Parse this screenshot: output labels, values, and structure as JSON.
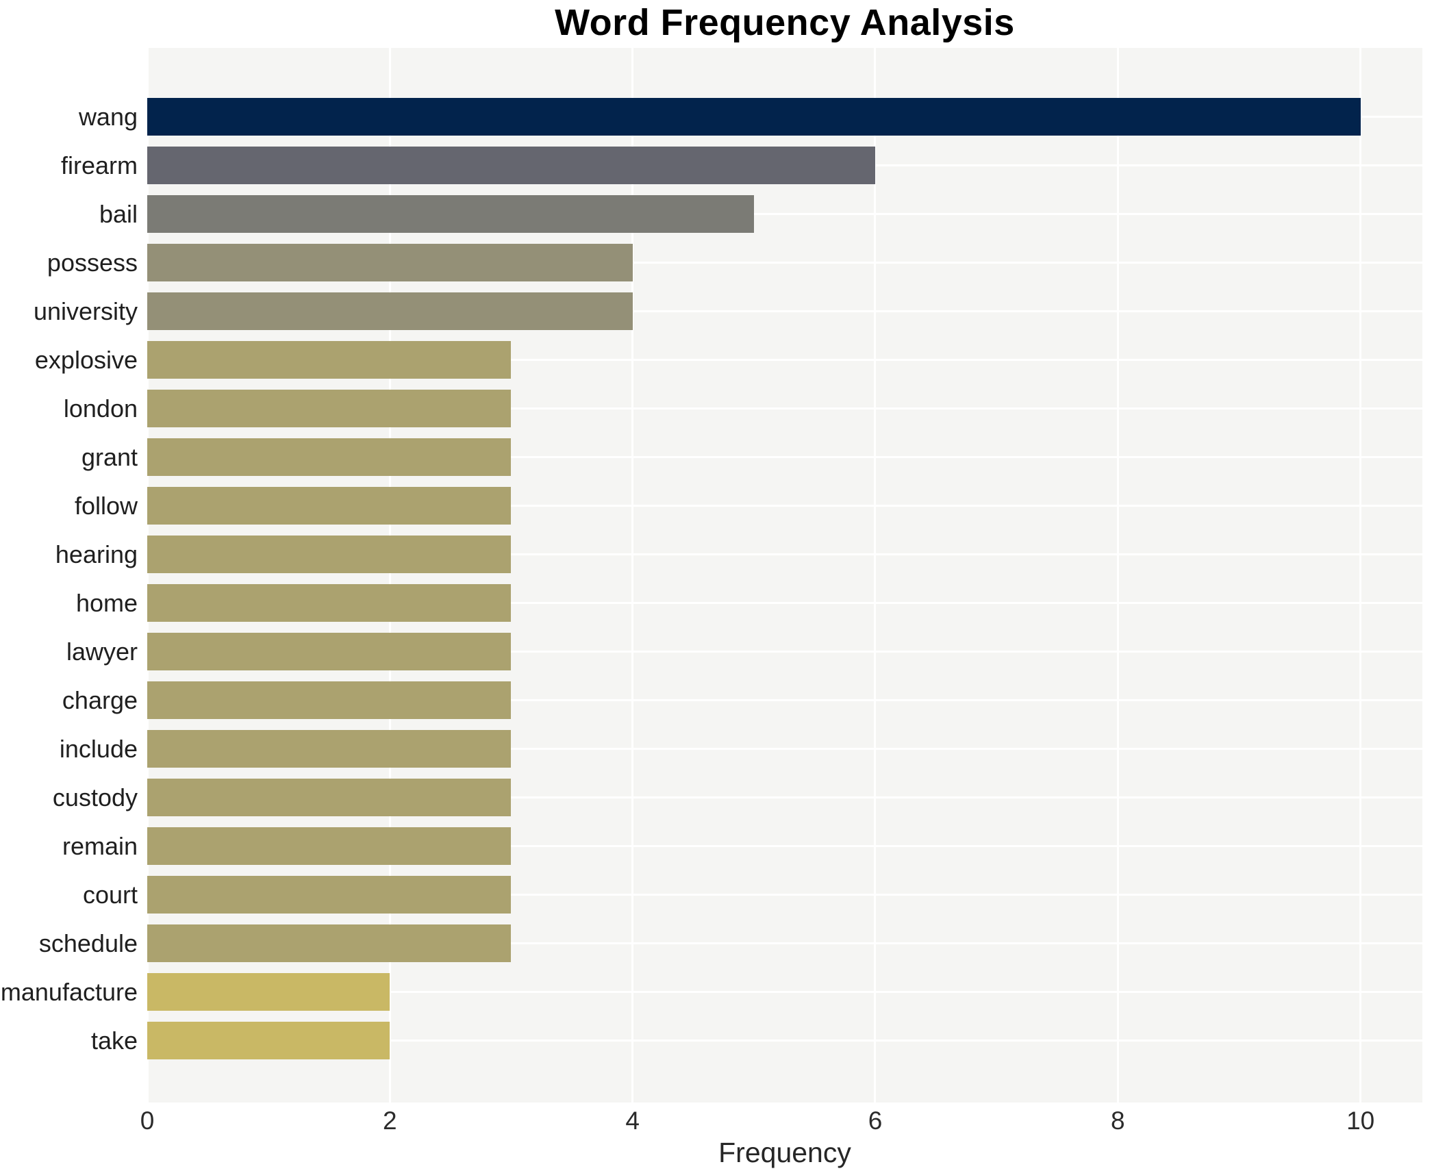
{
  "chart_data": {
    "type": "bar",
    "orientation": "horizontal",
    "title": "Word Frequency Analysis",
    "xlabel": "Frequency",
    "ylabel": "",
    "xlim": [
      0,
      10.51
    ],
    "xticks": [
      0,
      2,
      4,
      6,
      8,
      10
    ],
    "grid": true,
    "legend_position": "none",
    "categories": [
      "wang",
      "firearm",
      "bail",
      "possess",
      "university",
      "explosive",
      "london",
      "grant",
      "follow",
      "hearing",
      "home",
      "lawyer",
      "charge",
      "include",
      "custody",
      "remain",
      "court",
      "schedule",
      "manufacture",
      "take"
    ],
    "values": [
      10,
      6,
      5,
      4,
      4,
      3,
      3,
      3,
      3,
      3,
      3,
      3,
      3,
      3,
      3,
      3,
      3,
      3,
      2,
      2
    ],
    "bar_colors": [
      "#02234c",
      "#65666f",
      "#7b7b75",
      "#949077",
      "#949077",
      "#aba26f",
      "#aba26f",
      "#aba26f",
      "#aba26f",
      "#aba26f",
      "#aba26f",
      "#aba26f",
      "#aba26f",
      "#aba26f",
      "#aba26f",
      "#aba26f",
      "#aba26f",
      "#aba26f",
      "#c9b865",
      "#c9b865"
    ],
    "colors": {
      "page_background": "#ffffff",
      "plot_background": "#f5f5f3",
      "gridline": "#ffffff",
      "title_text": "#000000",
      "category_label_text": "#1f1f1f",
      "tick_label_text": "#2b2b2b",
      "axis_title_text": "#262626"
    }
  }
}
